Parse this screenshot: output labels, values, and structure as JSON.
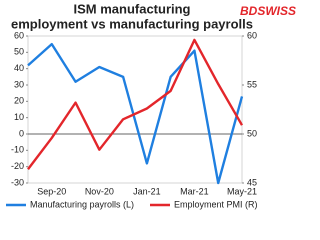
{
  "chart_data": {
    "type": "line",
    "title": [
      "ISM manufacturing",
      "employment vs manufacturing payrolls"
    ],
    "logo": "BDSWISS",
    "categories": [
      null,
      "Sep-20",
      null,
      "Nov-20",
      null,
      "Jan-21",
      null,
      "Mar-21",
      null,
      "May-21"
    ],
    "series": [
      {
        "name": "Manufacturing payrolls (L)",
        "color": "#1f7fe0",
        "axis": "y",
        "values": [
          42,
          55,
          32,
          41,
          35,
          -18,
          35,
          51,
          -30,
          23
        ]
      },
      {
        "name": "Employment PMI (R)",
        "color": "#e3262b",
        "axis": "y2",
        "values": [
          46.4,
          49.6,
          53.2,
          48.4,
          51.5,
          52.6,
          54.4,
          59.6,
          55.1,
          50.9
        ]
      }
    ],
    "ylim": [
      -30,
      60
    ],
    "yticks": [
      -30,
      -20,
      -10,
      0,
      10,
      20,
      30,
      40,
      50,
      60
    ],
    "y2lim": [
      45,
      60
    ],
    "y2ticks": [
      45,
      50,
      55,
      60
    ],
    "legend": "bottom"
  }
}
